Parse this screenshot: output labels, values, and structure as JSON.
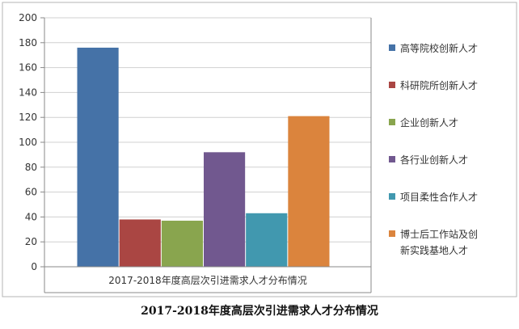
{
  "chart_data": {
    "type": "bar",
    "x_category": "2017-2018年度高层次引进需求人才分布情况",
    "series": [
      {
        "name": "高等院校创新人才",
        "value": 176,
        "color": "#4572A7"
      },
      {
        "name": "科研院所创新人才",
        "value": 38,
        "color": "#AA4643"
      },
      {
        "name": "企业创新人才",
        "value": 37,
        "color": "#89A54E"
      },
      {
        "name": "各行业创新人才",
        "value": 92,
        "color": "#71588F"
      },
      {
        "name": "项目柔性合作人才",
        "value": 43,
        "color": "#4198AF"
      },
      {
        "name": "博士后工作站及创新实践基地人才",
        "value": 121,
        "color": "#DB843D"
      }
    ],
    "legend_lines": [
      [
        "高等院校创新人才"
      ],
      [
        "科研院所创新人才"
      ],
      [
        "企业创新人才"
      ],
      [
        "各行业创新人才"
      ],
      [
        "项目柔性合作人才"
      ],
      [
        "博士后工作站及创",
        "新实践基地人才"
      ]
    ],
    "ylim": [
      0,
      200
    ],
    "yticks": [
      0,
      20,
      40,
      60,
      80,
      100,
      120,
      140,
      160,
      180,
      200
    ],
    "grid": true,
    "legend_position": "right"
  },
  "caption": "2017-2018年度高层次引进需求人才分布情况"
}
